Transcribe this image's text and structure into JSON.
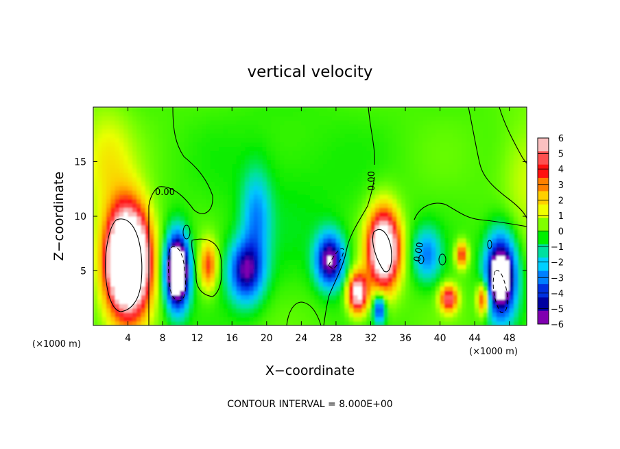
{
  "chart_data": {
    "type": "heatmap",
    "title": "vertical velocity",
    "xlabel": "X−coordinate",
    "ylabel": "Z−coordinate",
    "x_unit_left": "(×1000 m)",
    "x_unit_right": "(×1000 m)",
    "footer": "CONTOUR INTERVAL = 8.000E+00",
    "xlim": [
      0,
      50
    ],
    "ylim": [
      0,
      20
    ],
    "x_ticks": [
      4,
      8,
      12,
      16,
      20,
      24,
      28,
      32,
      36,
      40,
      44,
      48
    ],
    "y_ticks": [
      5,
      10,
      15
    ],
    "colorbar": {
      "range": [
        -6,
        6
      ],
      "ticks": [
        6,
        5,
        4,
        3,
        2,
        1,
        0,
        -1,
        -2,
        -3,
        -4,
        -5,
        -6
      ],
      "colors": [
        "#fbc0c0",
        "#ff5050",
        "#ff1010",
        "#ff8000",
        "#ffd000",
        "#f0ff00",
        "#80ff00",
        "#00f000",
        "#00e0a0",
        "#00d0ff",
        "#0080ff",
        "#0030e0",
        "#0000a0",
        "#8000b0"
      ]
    },
    "contour_labels": [
      "0.00",
      "0.00",
      "0.00"
    ],
    "features": [
      {
        "name": "updraft-left",
        "x": 4.0,
        "z": 6.0,
        "sx": 2.4,
        "sz": 4.6,
        "amp": 14
      },
      {
        "name": "upper-left-positive",
        "x": 1.5,
        "z": 15.0,
        "sx": 3.0,
        "sz": 5.0,
        "amp": 1.5
      },
      {
        "name": "downdraft-x10",
        "x": 9.7,
        "z": 5.0,
        "sx": 1.3,
        "sz": 3.2,
        "amp": -12
      },
      {
        "name": "updraft-x13",
        "x": 13.3,
        "z": 5.5,
        "sx": 1.0,
        "sz": 2.2,
        "amp": 3.5
      },
      {
        "name": "downdraft-x17",
        "x": 17.6,
        "z": 5.0,
        "sx": 2.0,
        "sz": 2.8,
        "amp": -6
      },
      {
        "name": "upper-blue-x19",
        "x": 18.8,
        "z": 10.0,
        "sx": 1.6,
        "sz": 4.0,
        "amp": -3
      },
      {
        "name": "downdraft-x27",
        "x": 27.3,
        "z": 6.0,
        "sx": 1.6,
        "sz": 2.4,
        "amp": -7
      },
      {
        "name": "updraft-x31",
        "x": 30.5,
        "z": 3.0,
        "sx": 1.1,
        "sz": 1.8,
        "amp": 7
      },
      {
        "name": "updraft-x34",
        "x": 33.5,
        "z": 7.0,
        "sx": 1.8,
        "sz": 3.5,
        "amp": 9
      },
      {
        "name": "downdraft-x33",
        "x": 33.0,
        "z": 1.5,
        "sx": 0.7,
        "sz": 1.3,
        "amp": -5
      },
      {
        "name": "downdraft-x39",
        "x": 38.5,
        "z": 6.5,
        "sx": 1.6,
        "sz": 2.4,
        "amp": -3.5
      },
      {
        "name": "updraft-x41",
        "x": 41.0,
        "z": 2.5,
        "sx": 1.0,
        "sz": 1.2,
        "amp": 5
      },
      {
        "name": "updraft-x43",
        "x": 42.5,
        "z": 6.5,
        "sx": 0.7,
        "sz": 1.2,
        "amp": 4
      },
      {
        "name": "downdraft-x47",
        "x": 47.0,
        "z": 4.5,
        "sx": 1.7,
        "sz": 3.6,
        "amp": -10
      },
      {
        "name": "updraft-x45",
        "x": 45.0,
        "z": 2.5,
        "sx": 0.7,
        "sz": 1.5,
        "amp": 5
      },
      {
        "name": "upper-right-positive",
        "x": 50.0,
        "z": 14.0,
        "sx": 3.0,
        "sz": 5.0,
        "amp": 1.2
      }
    ]
  }
}
